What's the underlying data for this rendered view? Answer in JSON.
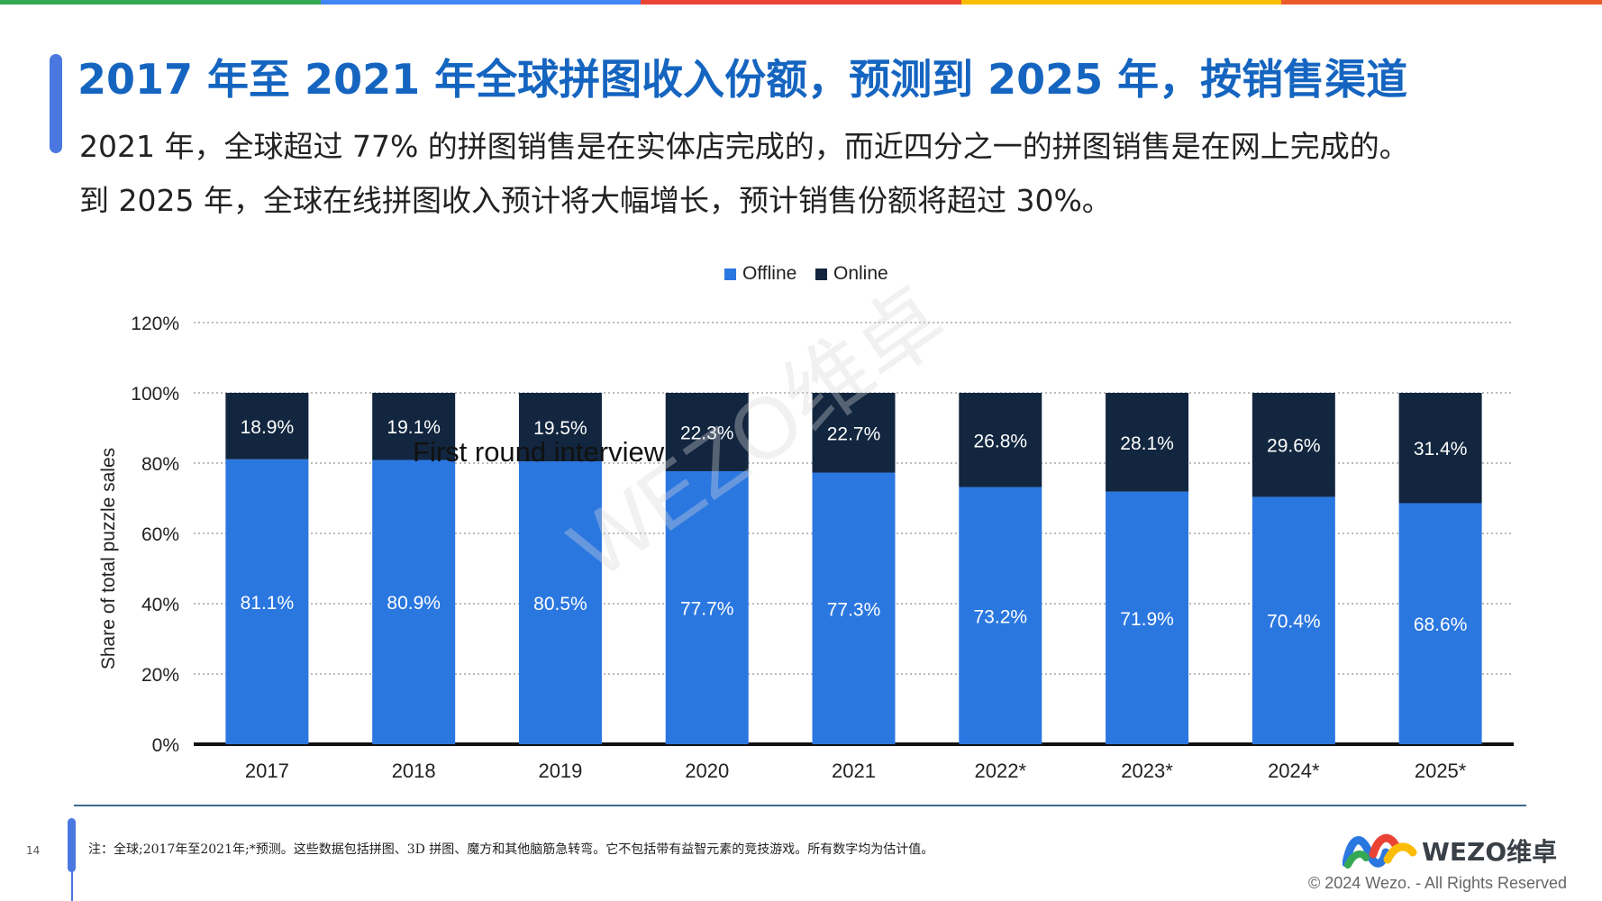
{
  "top_bar_colors": [
    "#34a853",
    "#4285f4",
    "#ea4335",
    "#fbbc05",
    "#ea5a2b"
  ],
  "page": {
    "title": "2017 年至 2021 年全球拼图收入份额，预测到 2025 年，按销售渠道",
    "subtitle_line1": "2021 年，全球超过 77% 的拼图销售是在实体店完成的，而近四分之一的拼图销售是在网上完成的。",
    "subtitle_line2": "到 2025 年，全球在线拼图收入预计将大幅增长，预计销售份额将超过 30%。",
    "page_number": "14",
    "footnote": "注：全球;2017年至2021年;*预测。这些数据包括拼图、3D 拼图、魔方和其他脑筋急转弯。它不包括带有益智元素的竞技游戏。所有数字均为估计值。",
    "logo_text": "WEZO维卓",
    "copyright": "© 2024 Wezo. - All Rights Reserved",
    "watermark": "WEZO维卓",
    "overlay_text": "First round interview"
  },
  "chart_data": {
    "type": "bar",
    "stacked": true,
    "categories": [
      "2017",
      "2018",
      "2019",
      "2020",
      "2021",
      "2022*",
      "2023*",
      "2024*",
      "2025*"
    ],
    "series": [
      {
        "name": "Offline",
        "color": "#2b77e0",
        "values": [
          81.1,
          80.9,
          80.5,
          77.7,
          77.3,
          73.2,
          71.9,
          70.4,
          68.6
        ]
      },
      {
        "name": "Online",
        "color": "#12263f",
        "values": [
          18.9,
          19.1,
          19.5,
          22.3,
          22.7,
          26.8,
          28.1,
          29.6,
          31.4
        ]
      }
    ],
    "value_labels": {
      "Offline": [
        "81.1%",
        "80.9%",
        "80.5%",
        "77.7%",
        "77.3%",
        "73.2%",
        "71.9%",
        "70.4%",
        "68.6%"
      ],
      "Online": [
        "18.9%",
        "19.1%",
        "19.5%",
        "22.3%",
        "22.7%",
        "26.8%",
        "28.1%",
        "29.6%",
        "31.4%"
      ]
    },
    "ylabel": "Share of total puzzle sales",
    "yticks": [
      "0%",
      "20%",
      "40%",
      "60%",
      "80%",
      "100%",
      "120%"
    ],
    "ylim": [
      0,
      120
    ],
    "grid": true,
    "legend_position": "top-center"
  }
}
